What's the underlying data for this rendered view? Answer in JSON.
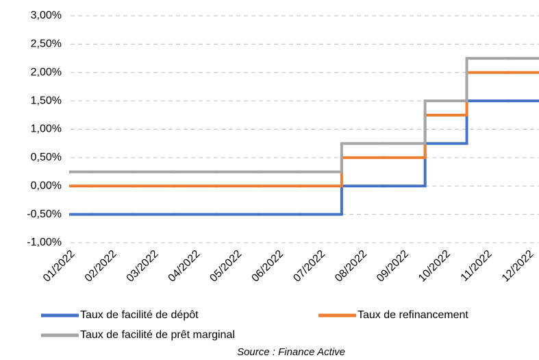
{
  "chart_data": {
    "type": "line",
    "step": "mid",
    "categories": [
      "01/2022",
      "02/2022",
      "03/2022",
      "04/2022",
      "05/2022",
      "06/2022",
      "07/2022",
      "08/2022",
      "09/2022",
      "10/2022",
      "11/2022",
      "12/2022"
    ],
    "series": [
      {
        "name": "Taux de facilité de dépôt",
        "color": "#4472c4",
        "values": [
          -0.5,
          -0.5,
          -0.5,
          -0.5,
          -0.5,
          -0.5,
          -0.5,
          0,
          0,
          0.75,
          1.5,
          1.5
        ]
      },
      {
        "name": "Taux de refinancement",
        "color": "#ed7d31",
        "values": [
          0,
          0,
          0,
          0,
          0,
          0,
          0,
          0.5,
          0.5,
          1.25,
          2,
          2
        ]
      },
      {
        "name": "Taux de facilité de prêt marginal",
        "color": "#a5a5a5",
        "values": [
          0.25,
          0.25,
          0.25,
          0.25,
          0.25,
          0.25,
          0.25,
          0.75,
          0.75,
          1.5,
          2.25,
          2.25
        ]
      }
    ],
    "ylim": [
      -1,
      3
    ],
    "yticks": [
      {
        "value": -1,
        "label": "-1,00%"
      },
      {
        "value": -0.5,
        "label": "-0,50%"
      },
      {
        "value": 0,
        "label": "0,00%"
      },
      {
        "value": 0.5,
        "label": "0,50%"
      },
      {
        "value": 1,
        "label": "1,00%"
      },
      {
        "value": 1.5,
        "label": "1,50%"
      },
      {
        "value": 2,
        "label": "2,00%"
      },
      {
        "value": 2.5,
        "label": "2,50%"
      },
      {
        "value": 3,
        "label": "3,00%"
      }
    ],
    "grid": true,
    "source": "Source : Finance Active"
  }
}
